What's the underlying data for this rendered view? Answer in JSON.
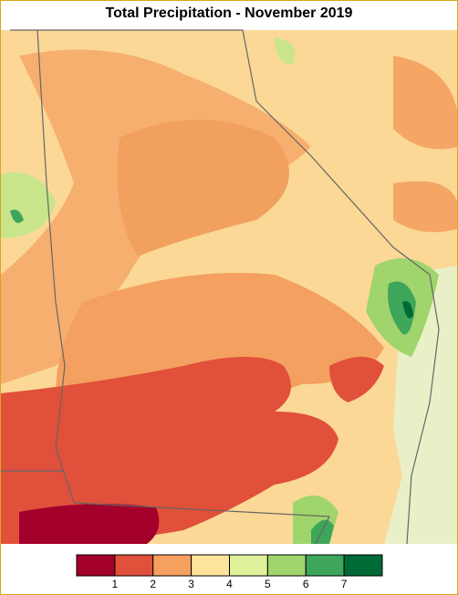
{
  "title": "Total Precipitation - November 2019",
  "legend": {
    "colors": [
      "#a3002b",
      "#e0503a",
      "#f6a060",
      "#fde49a",
      "#dff09a",
      "#9fd56c",
      "#3ea65b",
      "#006a37"
    ],
    "labels": [
      1,
      2,
      3,
      4,
      5,
      6,
      7
    ]
  }
}
